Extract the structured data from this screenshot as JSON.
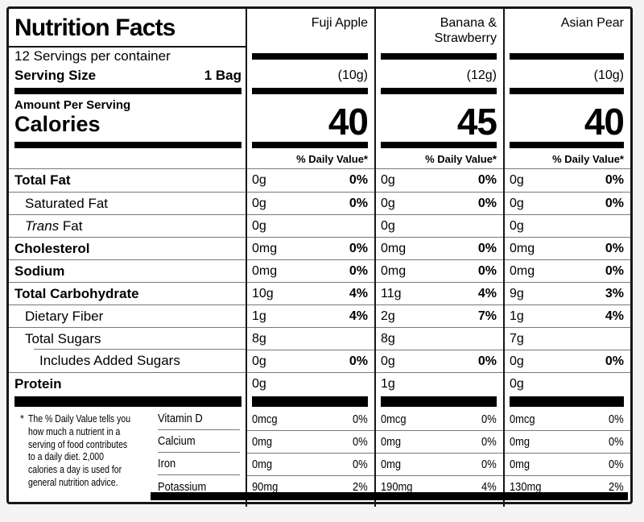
{
  "label": {
    "title": "Nutrition Facts",
    "servings_per_container": "12 Servings per container",
    "serving_size_label": "Serving Size",
    "serving_size_value": "1 Bag",
    "amount_per_serving": "Amount Per Serving",
    "calories_label": "Calories",
    "daily_value_header": "% Daily Value*"
  },
  "columns": [
    {
      "name_line1": "Fuji Apple",
      "name_line2": "",
      "serving_weight": "(10g)",
      "calories": "40"
    },
    {
      "name_line1": "Banana &",
      "name_line2": "Strawberry",
      "serving_weight": "(12g)",
      "calories": "45"
    },
    {
      "name_line1": "Asian Pear",
      "name_line2": "",
      "serving_weight": "(10g)",
      "calories": "40"
    }
  ],
  "nutrients": [
    {
      "label": "Total Fat",
      "values": [
        {
          "amount": "0g",
          "dv": "0%"
        },
        {
          "amount": "0g",
          "dv": "0%"
        },
        {
          "amount": "0g",
          "dv": "0%"
        }
      ]
    },
    {
      "label": "Saturated Fat",
      "values": [
        {
          "amount": "0g",
          "dv": "0%"
        },
        {
          "amount": "0g",
          "dv": "0%"
        },
        {
          "amount": "0g",
          "dv": "0%"
        }
      ]
    },
    {
      "label_italic": "Trans",
      "label_rest": " Fat",
      "values": [
        {
          "amount": "0g",
          "dv": ""
        },
        {
          "amount": "0g",
          "dv": ""
        },
        {
          "amount": "0g",
          "dv": ""
        }
      ]
    },
    {
      "label": "Cholesterol",
      "values": [
        {
          "amount": "0mg",
          "dv": "0%"
        },
        {
          "amount": "0mg",
          "dv": "0%"
        },
        {
          "amount": "0mg",
          "dv": "0%"
        }
      ]
    },
    {
      "label": "Sodium",
      "values": [
        {
          "amount": "0mg",
          "dv": "0%"
        },
        {
          "amount": "0mg",
          "dv": "0%"
        },
        {
          "amount": "0mg",
          "dv": "0%"
        }
      ]
    },
    {
      "label": "Total Carbohydrate",
      "values": [
        {
          "amount": "10g",
          "dv": "4%"
        },
        {
          "amount": "11g",
          "dv": "4%"
        },
        {
          "amount": "9g",
          "dv": "3%"
        }
      ]
    },
    {
      "label": "Dietary Fiber",
      "values": [
        {
          "amount": "1g",
          "dv": "4%"
        },
        {
          "amount": "2g",
          "dv": "7%"
        },
        {
          "amount": "1g",
          "dv": "4%"
        }
      ]
    },
    {
      "label": "Total Sugars",
      "values": [
        {
          "amount": "8g",
          "dv": ""
        },
        {
          "amount": "8g",
          "dv": ""
        },
        {
          "amount": "7g",
          "dv": ""
        }
      ]
    },
    {
      "label": "Includes Added Sugars",
      "values": [
        {
          "amount": "0g",
          "dv": "0%"
        },
        {
          "amount": "0g",
          "dv": "0%"
        },
        {
          "amount": "0g",
          "dv": "0%"
        }
      ]
    },
    {
      "label": "Protein",
      "values": [
        {
          "amount": "0g",
          "dv": ""
        },
        {
          "amount": "1g",
          "dv": ""
        },
        {
          "amount": "0g",
          "dv": ""
        }
      ]
    }
  ],
  "vitamins": [
    {
      "label": "Vitamin D",
      "values": [
        {
          "amount": "0mcg",
          "dv": "0%"
        },
        {
          "amount": "0mcg",
          "dv": "0%"
        },
        {
          "amount": "0mcg",
          "dv": "0%"
        }
      ]
    },
    {
      "label": "Calcium",
      "values": [
        {
          "amount": "0mg",
          "dv": "0%"
        },
        {
          "amount": "0mg",
          "dv": "0%"
        },
        {
          "amount": "0mg",
          "dv": "0%"
        }
      ]
    },
    {
      "label": "Iron",
      "values": [
        {
          "amount": "0mg",
          "dv": "0%"
        },
        {
          "amount": "0mg",
          "dv": "0%"
        },
        {
          "amount": "0mg",
          "dv": "0%"
        }
      ]
    },
    {
      "label": "Potassium",
      "values": [
        {
          "amount": "90mg",
          "dv": "2%"
        },
        {
          "amount": "190mg",
          "dv": "4%"
        },
        {
          "amount": "130mg",
          "dv": "2%"
        }
      ]
    }
  ],
  "footnote": {
    "marker": "*",
    "text": "The % Daily Value tells you how much a nutrient in a serving of food contributes to a daily diet. 2,000 calories a day is used for general nutrition advice."
  },
  "colors": {
    "text": "#000000",
    "hairline": "#787878",
    "background": "#ffffff"
  }
}
